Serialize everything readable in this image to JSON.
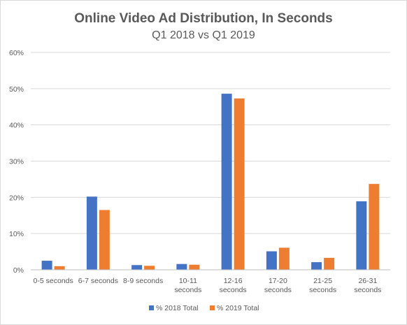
{
  "chart_data": {
    "type": "bar",
    "title": "Online Video Ad Distribution, In Seconds",
    "subtitle": "Q1 2018 vs Q1 2019",
    "categories": [
      [
        "0-5 seconds"
      ],
      [
        "6-7 seconds"
      ],
      [
        "8-9 seconds"
      ],
      [
        "10-11",
        "seconds"
      ],
      [
        "12-16",
        "seconds"
      ],
      [
        "17-20",
        "seconds"
      ],
      [
        "21-25",
        "seconds"
      ],
      [
        "26-31",
        "seconds"
      ]
    ],
    "series": [
      {
        "name": "% 2018 Total",
        "color": "#4472c4",
        "values": [
          2.5,
          20.2,
          1.3,
          1.6,
          48.6,
          5.1,
          2.1,
          18.9
        ]
      },
      {
        "name": "% 2019 Total",
        "color": "#ed7d31",
        "values": [
          1.0,
          16.5,
          1.1,
          1.4,
          47.3,
          6.1,
          3.3,
          23.7
        ]
      }
    ],
    "yticks": [
      "0%",
      "10%",
      "20%",
      "30%",
      "40%",
      "50%",
      "60%"
    ],
    "ylim": [
      0,
      60
    ],
    "grid": true,
    "legend": "bottom"
  }
}
